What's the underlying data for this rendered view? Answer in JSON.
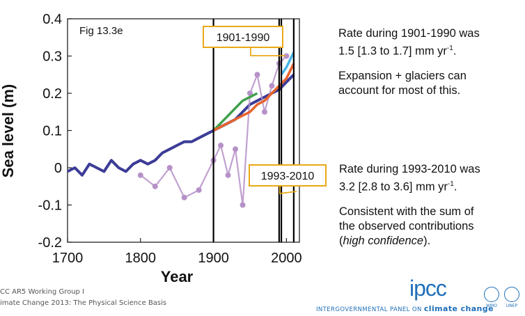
{
  "chart_data": {
    "type": "line",
    "figure_label": "Fig 13.3e",
    "xlabel": "Year",
    "ylabel": "Sea level (m)",
    "xlim": [
      1700,
      2020
    ],
    "ylim": [
      -0.2,
      0.4
    ],
    "xticks": [
      1700,
      1800,
      1900,
      2000
    ],
    "yticks": [
      {
        "value": 0.4,
        "label": "0.4"
      },
      {
        "value": 0.3,
        "label": "0.3"
      },
      {
        "value": 0.2,
        "label": "0.2"
      },
      {
        "value": 0.1,
        "label": "0.1"
      },
      {
        "value": 0,
        "label": "0"
      },
      {
        "value": -0.1,
        "label": "-0.1"
      },
      {
        "value": -0.2,
        "label": "-0.2"
      }
    ],
    "vertical_lines": [
      1900,
      1990,
      1993,
      2010
    ],
    "series": [
      {
        "color": "#3c3c96",
        "x": [
          1700,
          1710,
          1720,
          1730,
          1740,
          1750,
          1760,
          1770,
          1780,
          1790,
          1800,
          1810,
          1820,
          1830,
          1840,
          1850,
          1860,
          1870,
          1880,
          1890,
          1900,
          1910,
          1920,
          1930,
          1940,
          1950,
          1960,
          1970,
          1980,
          1990,
          2000,
          2010
        ],
        "values": [
          -0.01,
          0,
          -0.02,
          0.01,
          0,
          -0.01,
          0.02,
          0,
          -0.01,
          0.01,
          0.02,
          0.01,
          0.02,
          0.04,
          0.05,
          0.06,
          0.07,
          0.07,
          0.08,
          0.09,
          0.1,
          0.11,
          0.12,
          0.13,
          0.15,
          0.17,
          0.18,
          0.19,
          0.2,
          0.21,
          0.23,
          0.25
        ]
      },
      {
        "color": "#b691c8",
        "x": [
          1800,
          1820,
          1840,
          1860,
          1880,
          1900,
          1910,
          1920,
          1930,
          1940,
          1950,
          1960,
          1970,
          1980,
          1990,
          2000
        ],
        "values": [
          -0.02,
          -0.05,
          0,
          -0.08,
          -0.06,
          0.02,
          0.06,
          -0.02,
          0.05,
          -0.1,
          0.2,
          0.25,
          0.15,
          0.22,
          0.28,
          0.3
        ]
      },
      {
        "color": "#3fa04a",
        "x": [
          1900,
          1910,
          1920,
          1930,
          1940,
          1950,
          1960
        ],
        "values": [
          0.1,
          0.12,
          0.14,
          0.16,
          0.18,
          0.19,
          0.2
        ]
      },
      {
        "color": "#e8632b",
        "x": [
          1900,
          1910,
          1920,
          1930,
          1940,
          1950,
          1960,
          1970,
          1980,
          1990,
          2000,
          2010
        ],
        "values": [
          0.1,
          0.11,
          0.12,
          0.13,
          0.14,
          0.15,
          0.17,
          0.18,
          0.2,
          0.22,
          0.24,
          0.28
        ]
      },
      {
        "color": "#48b4e6",
        "x": [
          1993,
          2000,
          2005,
          2010
        ],
        "values": [
          0.25,
          0.27,
          0.29,
          0.31
        ]
      }
    ],
    "callouts": [
      {
        "label": "1901-1990"
      },
      {
        "label": "1993-2010"
      }
    ]
  },
  "notes": {
    "first": {
      "line1": "Rate during 1901-1990 was",
      "line2_prefix": "1.5 [1.3 to 1.7] mm yr",
      "line2_sup": "-1",
      "line2_suffix": "."
    },
    "first_explain": {
      "line1": "Expansion + glaciers can",
      "line2": "account for most of this."
    },
    "second": {
      "line1": "Rate during 1993-2010 was",
      "line2_prefix": "3.2 [2.8 to 3.6] mm yr",
      "line2_sup": "-1",
      "line2_suffix": "."
    },
    "second_explain": {
      "line1": "Consistent with the sum of",
      "line2": "the observed contributions",
      "line3_open": "(",
      "line3_italic": "high confidence",
      "line3_close": ")."
    }
  },
  "footer": {
    "line1": "CC AR5 Working Group I",
    "line2": "imate Change 2013: The Physical Science Basis",
    "ipcc_logo": "ipcc",
    "ipcc_line_prefix": "INTERGOVERNMENTAL PANEL ON",
    "ipcc_line_bold": "climate change",
    "wmo": "WMO",
    "unep": "UNEP"
  }
}
